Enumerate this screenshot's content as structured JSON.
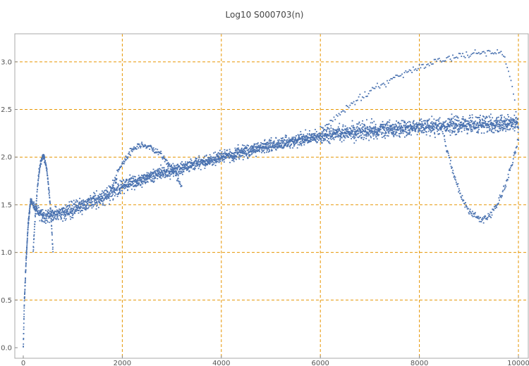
{
  "chart_data": {
    "type": "scatter",
    "title": "Log10 S000703(n)",
    "xlabel": "",
    "ylabel": "",
    "xlim": [
      0,
      10000
    ],
    "ylim": [
      0,
      3.25
    ],
    "x_ticks": [
      0,
      2000,
      4000,
      6000,
      8000,
      10000
    ],
    "y_ticks": [
      0.0,
      0.5,
      1.0,
      1.5,
      2.0,
      2.5,
      3.0
    ],
    "x_tick_labels": [
      "0",
      "2000",
      "4000",
      "6000",
      "8000",
      "10000"
    ],
    "y_tick_labels": [
      "0.0",
      "0.5",
      "1.0",
      "1.5",
      "2.0",
      "2.5",
      "3.0"
    ],
    "grid": true,
    "legend": "none",
    "series": [
      {
        "point_count": 10000,
        "description_of_shape": "sharp rise to ~1.55 by n≈150 with a secondary arc peaking ~2.0 at n≈400; dense band rising from ~1.4 at n≈600 through ~1.7 at 2000, ~2.0 at 4000, ~2.25 at 6000 to ~2.35 at 10000; sparse upper arcs reaching ~3.1 near n≈9500 and lower arcs dipping to ~1.35 near n≈9200",
        "band": {
          "x": [
            0,
            20,
            60,
            100,
            150,
            200,
            300,
            400,
            600,
            800,
            1000,
            1500,
            2000,
            2500,
            3000,
            4000,
            5000,
            6000,
            7000,
            8000,
            9000,
            10000
          ],
          "center": [
            0.0,
            0.45,
            0.95,
            1.3,
            1.55,
            1.5,
            1.42,
            1.38,
            1.4,
            1.42,
            1.45,
            1.55,
            1.7,
            1.78,
            1.86,
            2.0,
            2.12,
            2.22,
            2.28,
            2.32,
            2.34,
            2.35
          ]
        },
        "arcs": [
          {
            "x_range": [
              200,
              600
            ],
            "peak_x": 400,
            "peak_y": 2.0,
            "base_y": 1.0
          },
          {
            "x_range": [
              1800,
              3200
            ],
            "peak_x": 2400,
            "peak_y": 2.12,
            "base_y": 1.7
          },
          {
            "x_range": [
              6000,
              10000
            ],
            "peak_x": 9600,
            "peak_y": 3.1,
            "base_y": 2.3
          },
          {
            "x_range": [
              8500,
              10000
            ],
            "peak_x": 9250,
            "peak_y": 1.35,
            "base_y": 2.2
          }
        ]
      }
    ],
    "colors": {
      "points": "#4a72b0",
      "grid": "#e69500",
      "axis": "#888888",
      "frame": "#aaaaaa"
    }
  }
}
